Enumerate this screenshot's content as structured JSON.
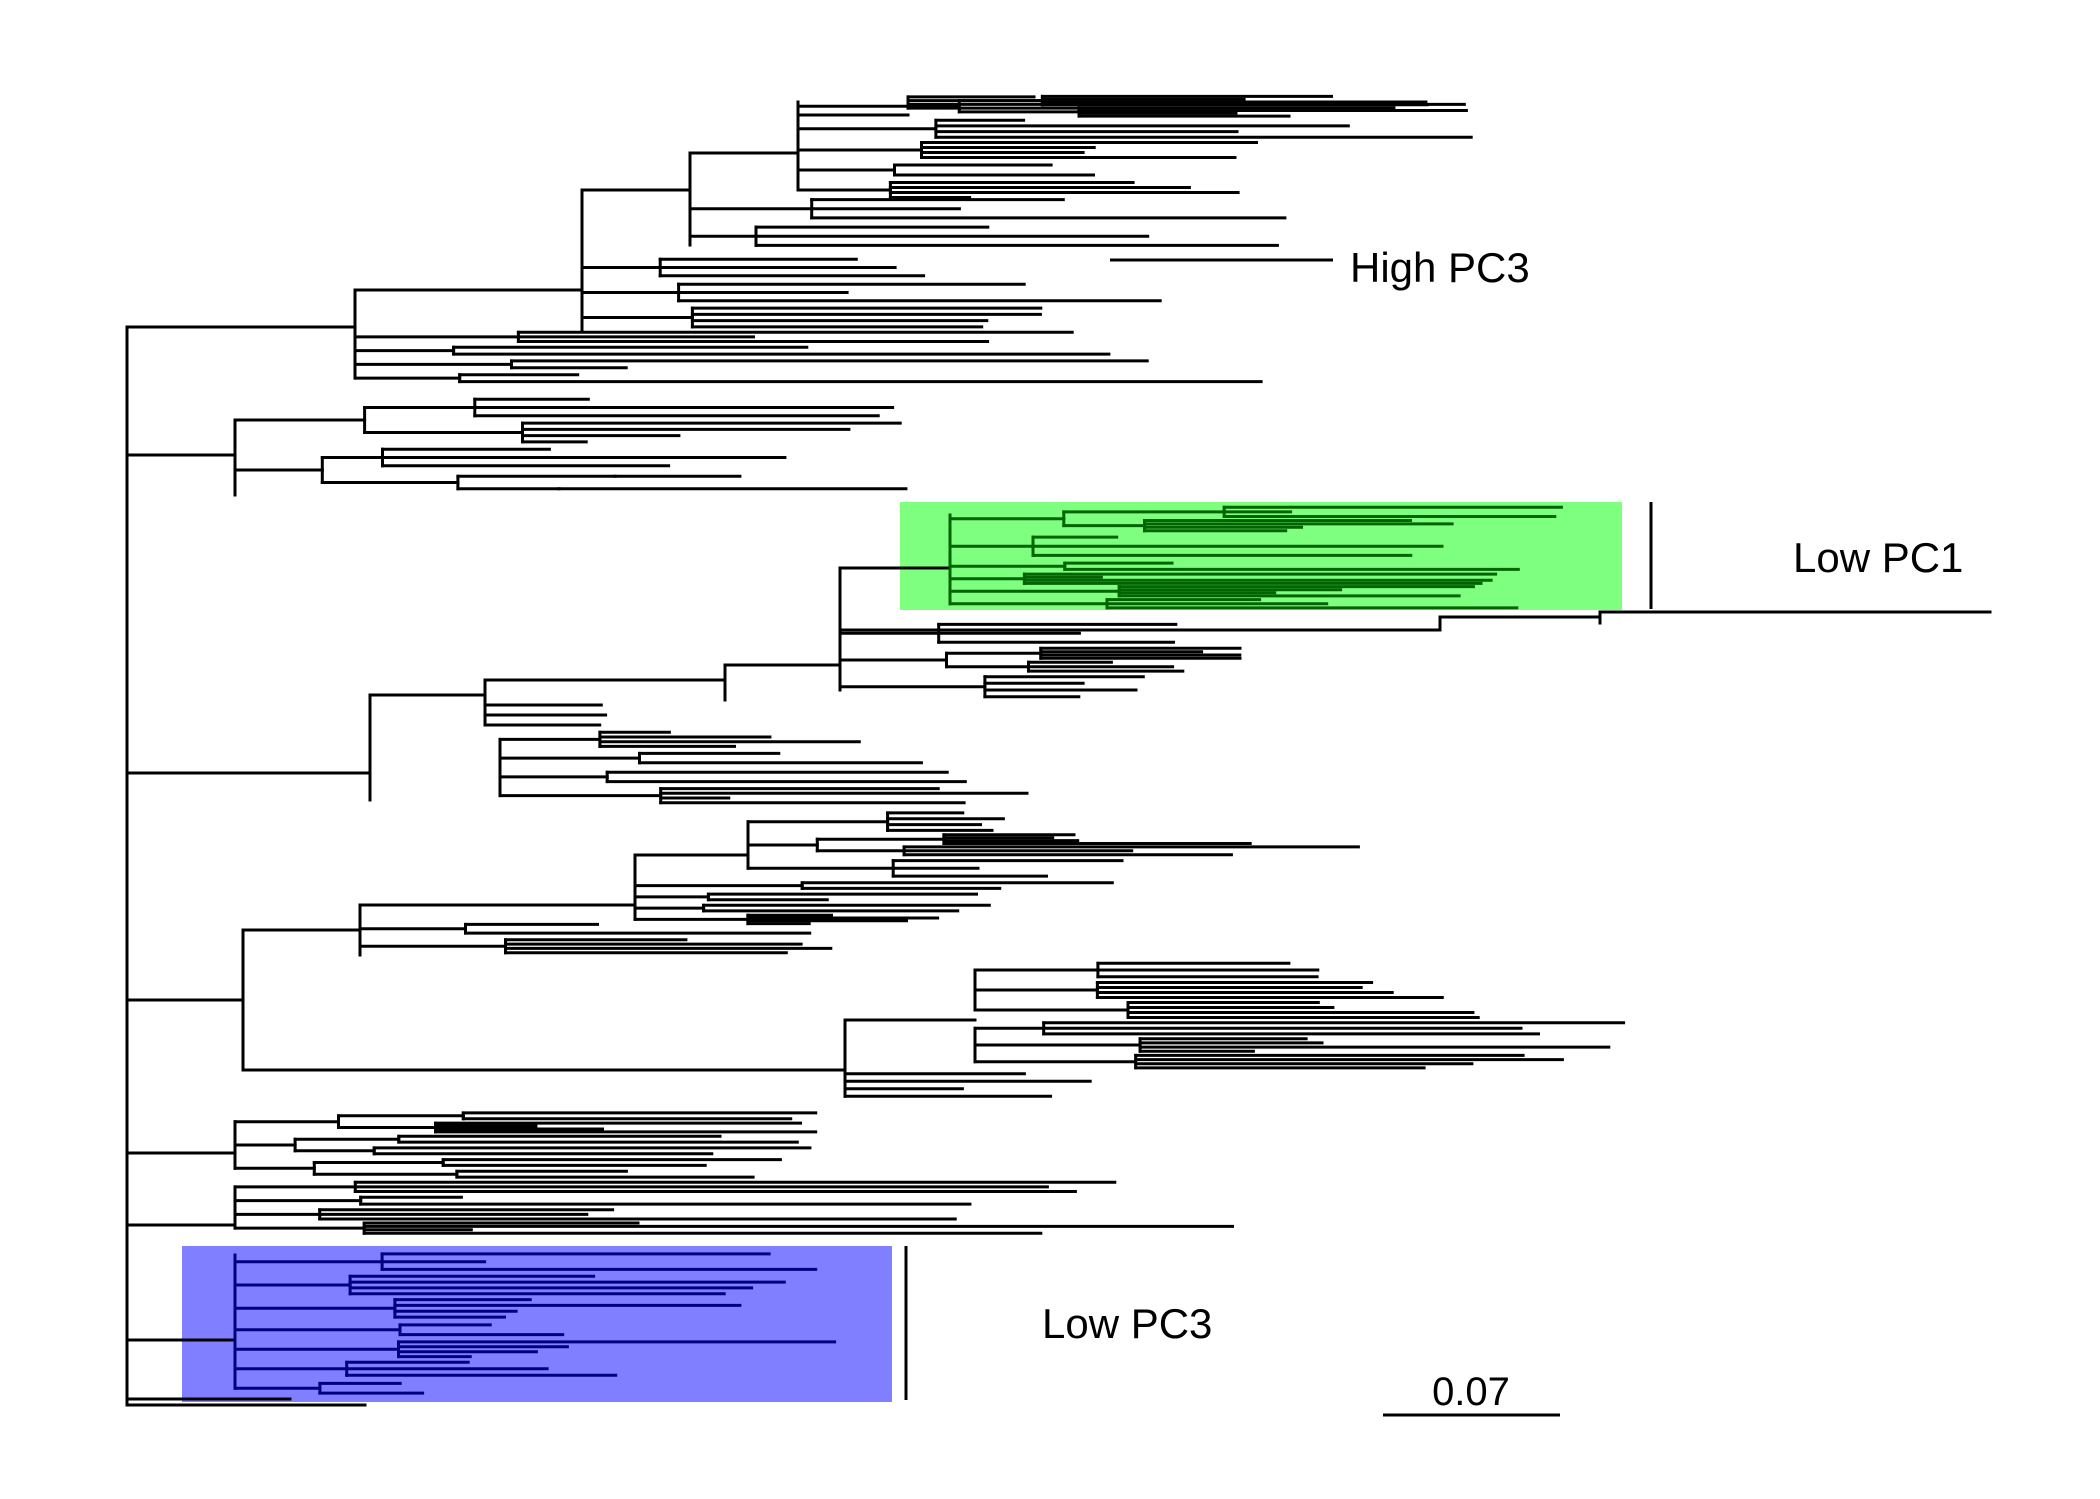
{
  "labels": {
    "high_pc3": "High PC3",
    "low_pc1": "Low PC1",
    "low_pc3": "Low PC3"
  },
  "scale_bar": {
    "label": "0.07"
  },
  "colors": {
    "branch": "#000000",
    "low_pc1_highlight": "#7fff7f",
    "low_pc1_branches": "#006400",
    "low_pc3_highlight": "#7f7fff",
    "low_pc3_branches": "#000080",
    "high_pc3_branch_accent": "#8b0000"
  }
}
